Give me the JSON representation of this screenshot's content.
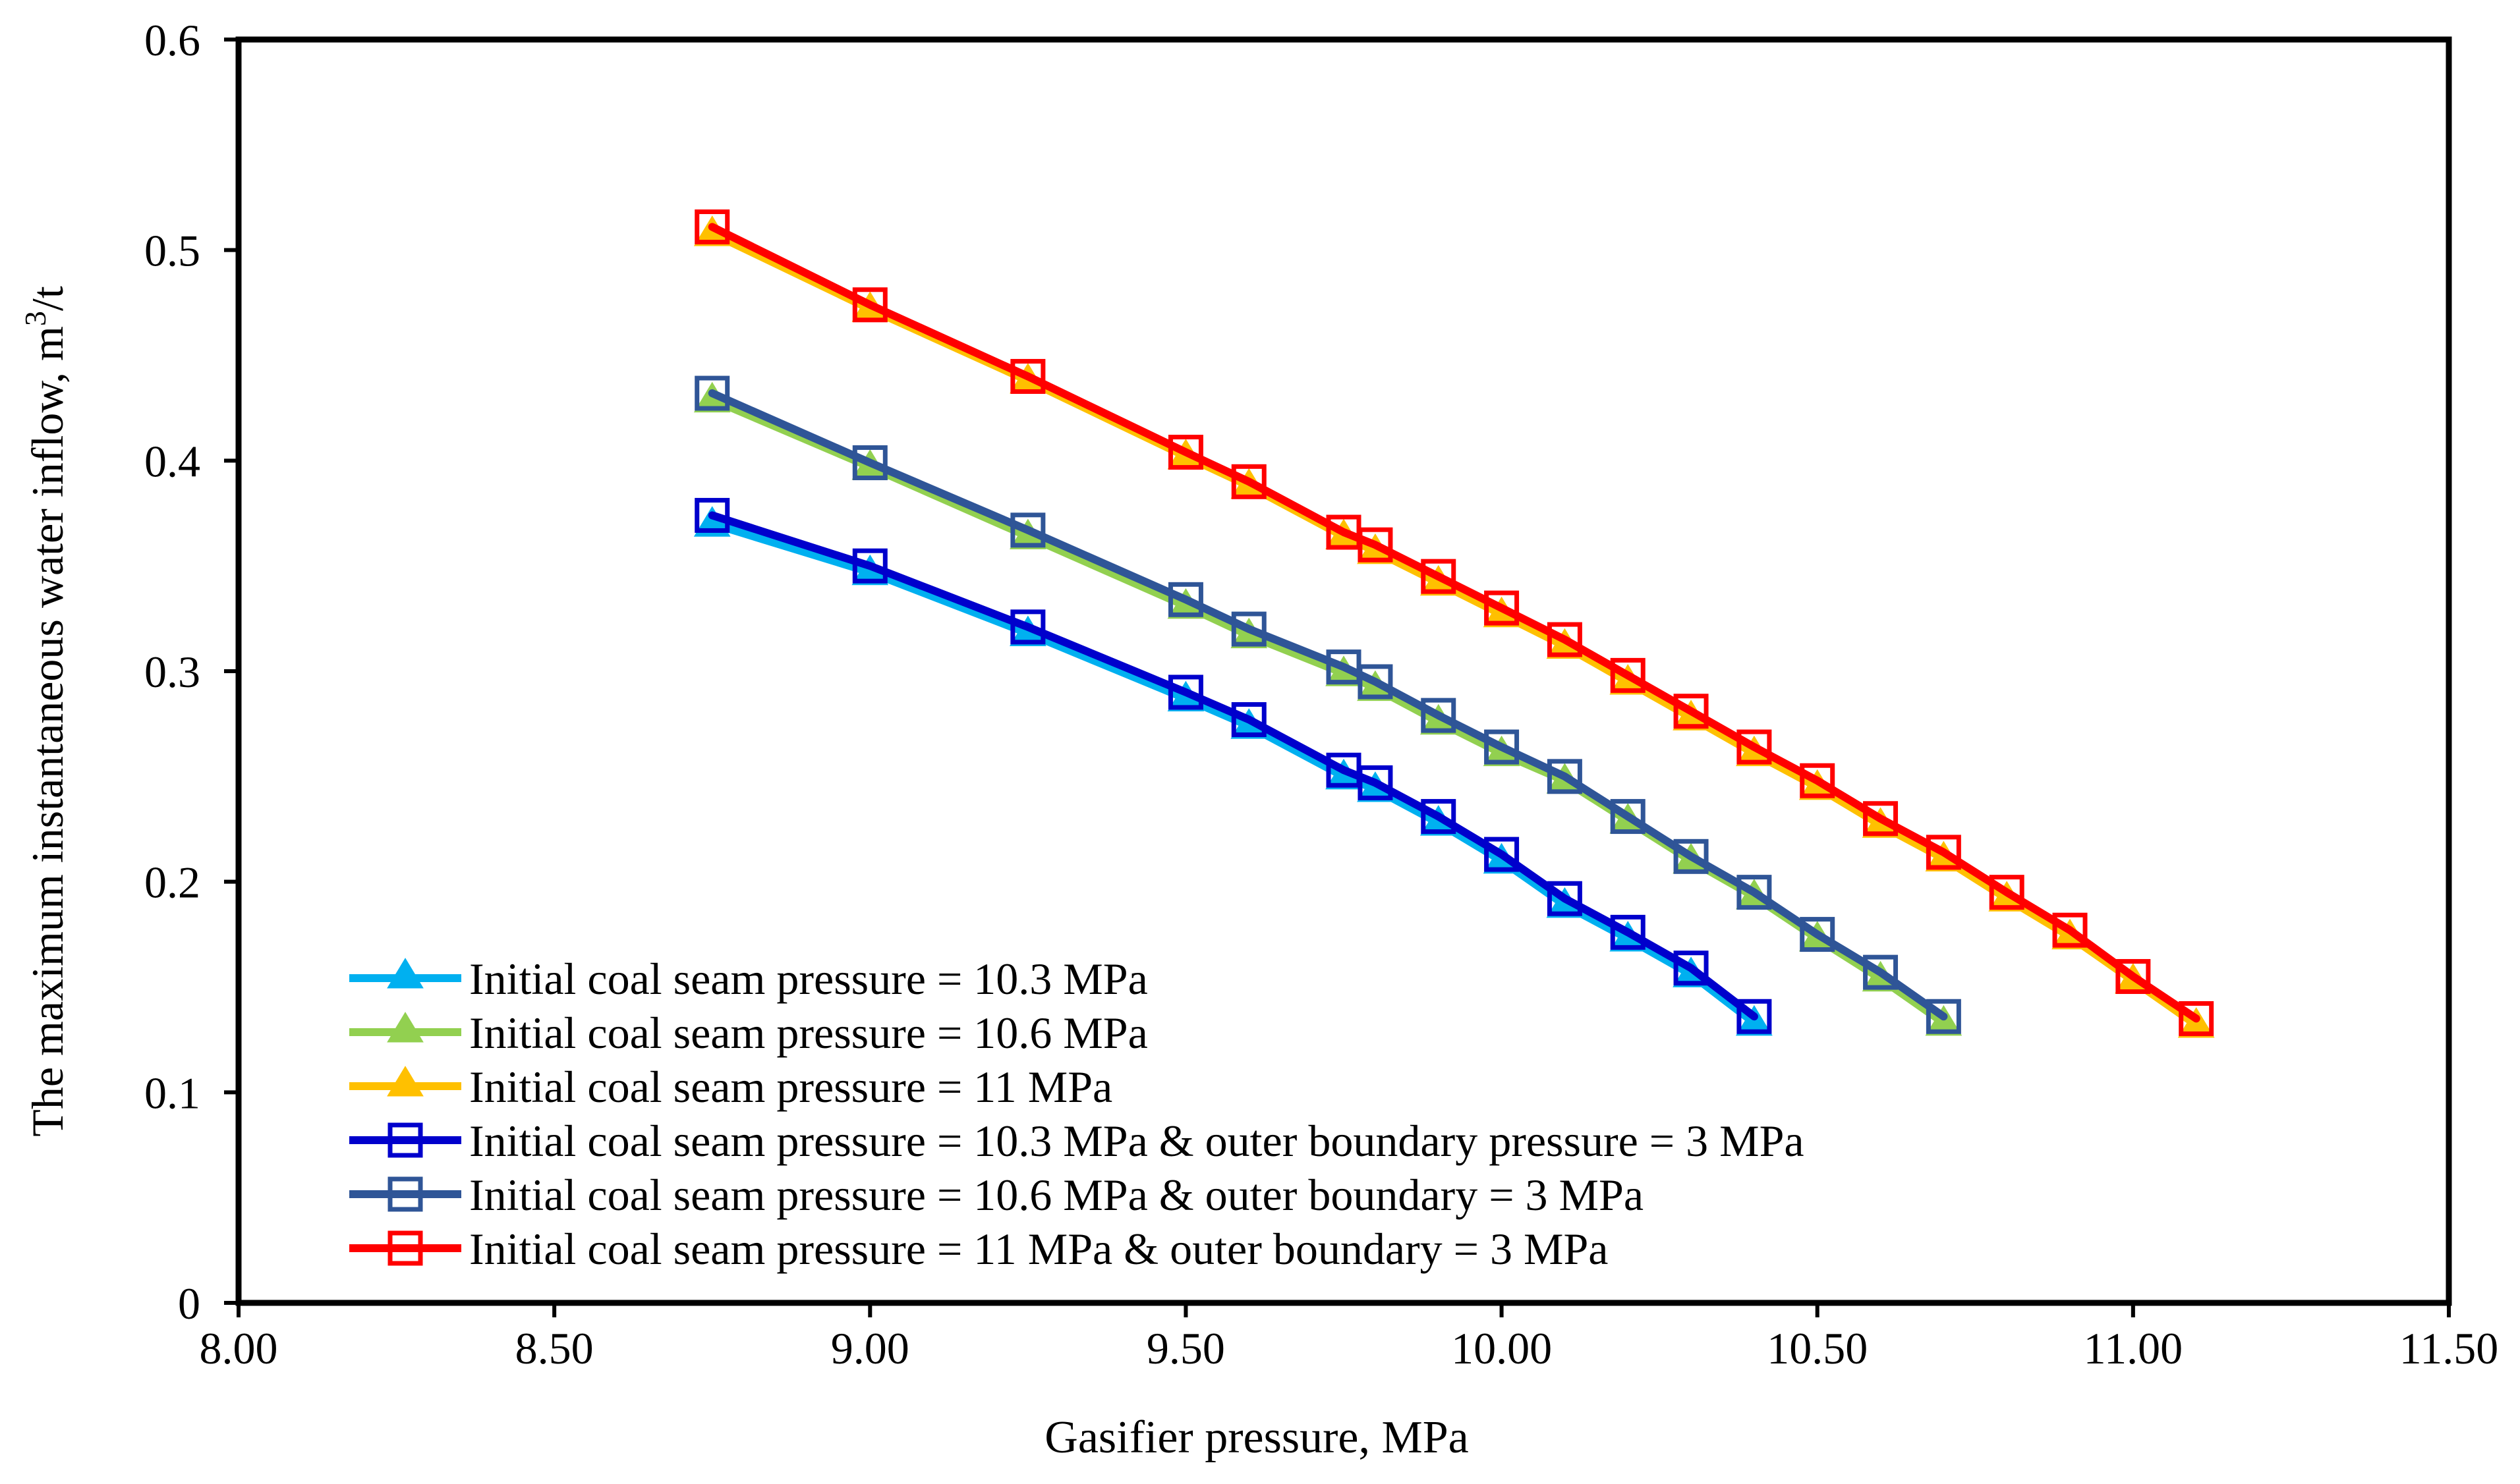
{
  "chart_data": {
    "type": "line",
    "title": "",
    "xlabel": "Gasifier pressure, MPa",
    "ylabel_main": "The maximum instantaneous water inflow, m",
    "ylabel_sup": "3",
    "ylabel_tail": "/t",
    "xlim": [
      8.0,
      11.5
    ],
    "ylim": [
      0,
      0.6
    ],
    "x_ticks": [
      8.0,
      8.5,
      9.0,
      9.5,
      10.0,
      10.5,
      11.0,
      11.5
    ],
    "x_tick_labels": [
      "8.00",
      "8.50",
      "9.00",
      "9.50",
      "10.00",
      "10.50",
      "11.00",
      "11.50"
    ],
    "y_ticks": [
      0,
      0.1,
      0.2,
      0.3,
      0.4,
      0.5,
      0.6
    ],
    "y_tick_labels": [
      "0",
      "0.1",
      "0.2",
      "0.3",
      "0.4",
      "0.5",
      "0.6"
    ],
    "grid": false,
    "legend_position": "bottom-left",
    "series": [
      {
        "name": "Initial coal seam pressure = 10.3 MPa",
        "color": "#00B0F0",
        "marker": "triangle",
        "x": [
          8.75,
          9.0,
          9.25,
          9.5,
          9.6,
          9.75,
          9.8,
          9.9,
          10.0,
          10.1,
          10.2,
          10.3,
          10.4
        ],
        "y": [
          0.37,
          0.347,
          0.318,
          0.287,
          0.274,
          0.25,
          0.244,
          0.228,
          0.21,
          0.189,
          0.173,
          0.156,
          0.133
        ]
      },
      {
        "name": "Initial coal seam pressure = 10.6 MPa",
        "color": "#92D050",
        "marker": "triangle",
        "x": [
          8.75,
          9.0,
          9.25,
          9.5,
          9.6,
          9.75,
          9.8,
          9.9,
          10.0,
          10.1,
          10.2,
          10.3,
          10.4,
          10.5,
          10.6,
          10.7
        ],
        "y": [
          0.429,
          0.397,
          0.364,
          0.331,
          0.317,
          0.299,
          0.292,
          0.276,
          0.261,
          0.248,
          0.229,
          0.21,
          0.193,
          0.173,
          0.154,
          0.133
        ]
      },
      {
        "name": "Initial coal seam pressure = 11 MPa",
        "color": "#FFC000",
        "marker": "triangle",
        "x": [
          8.75,
          9.0,
          9.25,
          9.5,
          9.6,
          9.75,
          9.8,
          9.9,
          10.0,
          10.1,
          10.2,
          10.3,
          10.4,
          10.5,
          10.6,
          10.7,
          10.8,
          10.9,
          11.0,
          11.1
        ],
        "y": [
          0.508,
          0.472,
          0.438,
          0.402,
          0.388,
          0.364,
          0.357,
          0.342,
          0.327,
          0.312,
          0.295,
          0.278,
          0.261,
          0.245,
          0.227,
          0.211,
          0.192,
          0.174,
          0.153,
          0.132
        ]
      },
      {
        "name": "Initial coal seam pressure = 10.3 MPa & outer boundary pressure = 3 MPa",
        "color": "#0000CC",
        "marker": "square",
        "x": [
          8.75,
          9.0,
          9.25,
          9.5,
          9.6,
          9.75,
          9.8,
          9.9,
          10.0,
          10.1,
          10.2,
          10.3,
          10.4
        ],
        "y": [
          0.374,
          0.35,
          0.321,
          0.29,
          0.277,
          0.253,
          0.247,
          0.231,
          0.213,
          0.192,
          0.176,
          0.159,
          0.136
        ]
      },
      {
        "name": "Initial coal seam pressure = 10.6 MPa & outer boundary = 3 MPa",
        "color": "#2F5597",
        "marker": "square",
        "x": [
          8.75,
          9.0,
          9.25,
          9.5,
          9.6,
          9.75,
          9.8,
          9.9,
          10.0,
          10.1,
          10.2,
          10.3,
          10.4,
          10.5,
          10.6,
          10.7
        ],
        "y": [
          0.432,
          0.399,
          0.367,
          0.334,
          0.32,
          0.302,
          0.295,
          0.279,
          0.264,
          0.25,
          0.231,
          0.212,
          0.195,
          0.175,
          0.157,
          0.136
        ]
      },
      {
        "name": "Initial coal seam pressure = 11 MPa & outer boundary = 3 MPa",
        "color": "#FF0000",
        "marker": "square",
        "x": [
          8.75,
          9.0,
          9.25,
          9.5,
          9.6,
          9.75,
          9.8,
          9.9,
          10.0,
          10.1,
          10.2,
          10.3,
          10.4,
          10.5,
          10.6,
          10.7,
          10.8,
          10.9,
          11.0,
          11.1
        ],
        "y": [
          0.511,
          0.474,
          0.44,
          0.404,
          0.39,
          0.366,
          0.36,
          0.345,
          0.33,
          0.315,
          0.298,
          0.281,
          0.264,
          0.248,
          0.23,
          0.214,
          0.195,
          0.177,
          0.155,
          0.135
        ]
      }
    ]
  }
}
